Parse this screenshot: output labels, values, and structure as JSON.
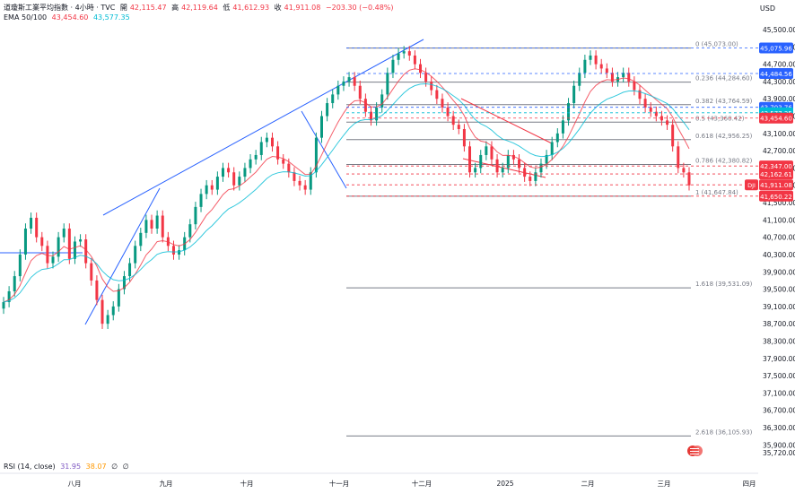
{
  "header": {
    "symbol": "道瓊斯工業平均指數 · 4小時 · TVC",
    "open_label": "開",
    "open": "42,115.47",
    "high_label": "高",
    "high": "42,119.64",
    "low_label": "低",
    "low": "41,612.93",
    "close_label": "收",
    "close": "41,911.08",
    "change": "−203.30 (−0.48%)",
    "ema_label": "EMA 50/100",
    "ema50": "43,454.60",
    "ema100": "43,577.35",
    "rsi_label": "RSI (14, close)",
    "rsi_value": "31.95",
    "rsi_ma": "38.07",
    "rsi_extra1": "∅",
    "rsi_extra2": "∅",
    "currency": "USD"
  },
  "colors": {
    "up": "#f23645",
    "down": "#089981",
    "ema50": "#f23645",
    "ema100": "#00bcd4",
    "trendline": "#2962ff",
    "fib_line": "#787b86",
    "price_tag_blue": "#2962ff",
    "price_tag_red": "#f23645",
    "price_tag_cyan": "#00bcd4"
  },
  "chart_data": {
    "type": "candlestick",
    "timeframe": "4小時",
    "ylim": [
      35720,
      45500
    ],
    "y_ticks": [
      "45,500.00",
      "45,100.00",
      "44,700.00",
      "44,300.00",
      "43,900.00",
      "43,500.00",
      "43,100.00",
      "42,700.00",
      "42,300.00",
      "41,900.00",
      "41,500.00",
      "41,100.00",
      "40,700.00",
      "40,300.00",
      "39,900.00",
      "39,500.00",
      "39,100.00",
      "38,700.00",
      "38,300.00",
      "37,900.00",
      "37,500.00",
      "37,100.00",
      "36,700.00",
      "36,300.00",
      "35,900.00",
      "35,720.00"
    ],
    "x_ticks": [
      "八月",
      "九月",
      "十月",
      "十一月",
      "十二月",
      "2025",
      "二月",
      "三月",
      "四月"
    ],
    "fib_levels": [
      {
        "label": "0 (45,073.00)",
        "value": 45073.0
      },
      {
        "label": "0.236 (44,284.60)",
        "value": 44284.6
      },
      {
        "label": "0.382 (43,764.59)",
        "value": 43764.59
      },
      {
        "label": "0.5 (43,360.42)",
        "value": 43360.42
      },
      {
        "label": "0.618 (42,956.25)",
        "value": 42956.25
      },
      {
        "label": "0.786 (42,380.82)",
        "value": 42380.82
      },
      {
        "label": "1 (41,647.84)",
        "value": 41647.84
      },
      {
        "label": "1.618 (39,531.09)",
        "value": 39531.09
      },
      {
        "label": "2.618 (36,105.93)",
        "value": 36105.93
      }
    ],
    "price_tags": [
      {
        "text": "45,075.96",
        "value": 45075.96,
        "color": "#2962ff"
      },
      {
        "text": "44,484.56",
        "value": 44484.56,
        "color": "#2962ff"
      },
      {
        "text": "43,703.76",
        "value": 43703.76,
        "color": "#2962ff"
      },
      {
        "text": "43,577.35",
        "value": 43577.35,
        "color": "#00bcd4"
      },
      {
        "text": "43,454.60",
        "value": 43454.6,
        "color": "#f23645"
      },
      {
        "text": "42,347.00",
        "value": 42347.0,
        "color": "#f23645"
      },
      {
        "text": "42,162.61",
        "value": 42162.61,
        "color": "#f23645"
      },
      {
        "text": "41,911.08",
        "value": 41911.08,
        "color": "#f23645",
        "prefix": "DJI"
      },
      {
        "text": "41,650.22",
        "value": 41650.22,
        "color": "#f23645"
      }
    ],
    "close_series": [
      39200,
      39450,
      39800,
      40300,
      40900,
      41150,
      40700,
      40500,
      40100,
      40250,
      40700,
      40900,
      40200,
      40600,
      40650,
      40100,
      39700,
      39250,
      38700,
      38900,
      39100,
      39500,
      39800,
      40100,
      40500,
      40800,
      41100,
      40900,
      41200,
      40700,
      40500,
      40300,
      40400,
      40700,
      41000,
      41400,
      41700,
      41900,
      41800,
      42100,
      42300,
      42200,
      41900,
      42100,
      42300,
      42500,
      42600,
      42900,
      43000,
      42800,
      42500,
      42400,
      42200,
      42000,
      41900,
      41800,
      42200,
      43000,
      43500,
      43800,
      44000,
      44200,
      44300,
      44400,
      44200,
      43900,
      43600,
      43400,
      43700,
      44000,
      44500,
      44800,
      44950,
      45000,
      44900,
      44700,
      44500,
      44300,
      44100,
      43900,
      43700,
      43500,
      43300,
      43200,
      42800,
      42200,
      42300,
      42600,
      42800,
      42500,
      42200,
      42300,
      42600,
      42500,
      42300,
      42100,
      42000,
      42200,
      42400,
      42600,
      42900,
      43100,
      43400,
      43800,
      44200,
      44500,
      44800,
      44900,
      44700,
      44600,
      44500,
      44300,
      44400,
      44500,
      44300,
      44100,
      43900,
      43700,
      43600,
      43500,
      43400,
      43300,
      42800,
      42300,
      42200,
      41900
    ],
    "ema50_last": 43454.6,
    "ema100_last": 43577.35
  }
}
